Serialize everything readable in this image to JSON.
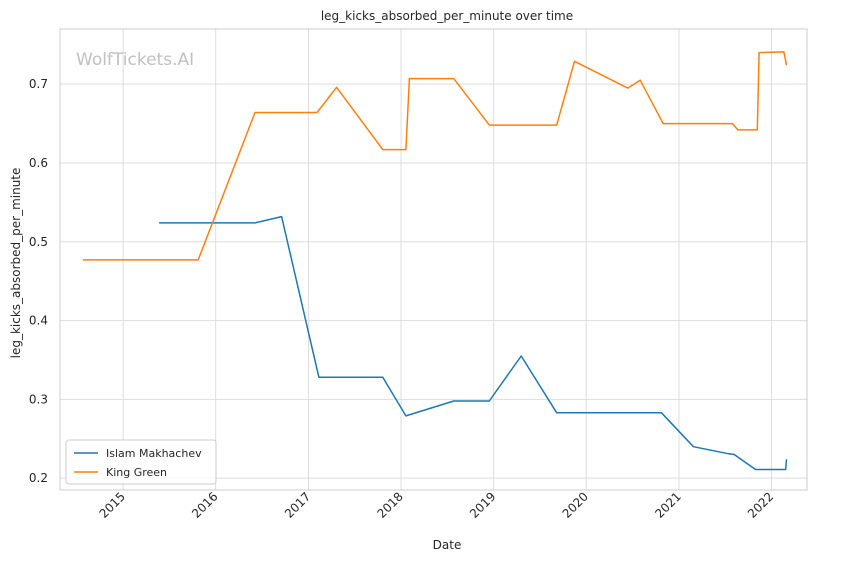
{
  "chart_data": {
    "type": "line",
    "title": "leg_kicks_absorbed_per_minute over time",
    "xlabel": "Date",
    "ylabel": "leg_kicks_absorbed_per_minute",
    "watermark": "WolfTickets.AI",
    "xlim": [
      "2014-04-27",
      "2022-05-21"
    ],
    "ylim": [
      0.185,
      0.77
    ],
    "x_ticks": [
      "2015",
      "2016",
      "2017",
      "2018",
      "2019",
      "2020",
      "2021",
      "2022"
    ],
    "y_ticks": [
      "0.2",
      "0.3",
      "0.4",
      "0.5",
      "0.6",
      "0.7"
    ],
    "grid": true,
    "legend_position": "lower-left",
    "series": [
      {
        "name": "Islam Makhachev",
        "color": "#1f77b4",
        "points": [
          [
            "2015-05-23",
            0.524
          ],
          [
            "2016-06-04",
            0.524
          ],
          [
            "2016-09-17",
            0.532
          ],
          [
            "2017-02-11",
            0.328
          ],
          [
            "2017-10-21",
            0.328
          ],
          [
            "2018-01-20",
            0.279
          ],
          [
            "2018-07-28",
            0.298
          ],
          [
            "2018-12-15",
            0.298
          ],
          [
            "2019-04-20",
            0.355
          ],
          [
            "2019-09-07",
            0.283
          ],
          [
            "2020-10-24",
            0.283
          ],
          [
            "2021-02-27",
            0.24
          ],
          [
            "2021-07-17",
            0.231
          ],
          [
            "2021-08-07",
            0.23
          ],
          [
            "2021-10-30",
            0.211
          ],
          [
            "2022-02-26",
            0.211
          ],
          [
            "2022-03-01",
            0.224
          ]
        ]
      },
      {
        "name": "King Green",
        "color": "#ff7f0e",
        "points": [
          [
            "2014-07-26",
            0.477
          ],
          [
            "2015-10-24",
            0.477
          ],
          [
            "2016-06-04",
            0.664
          ],
          [
            "2017-02-04",
            0.664
          ],
          [
            "2017-04-22",
            0.696
          ],
          [
            "2017-10-21",
            0.617
          ],
          [
            "2018-01-20",
            0.617
          ],
          [
            "2018-02-03",
            0.707
          ],
          [
            "2018-07-28",
            0.707
          ],
          [
            "2018-12-15",
            0.648
          ],
          [
            "2019-09-07",
            0.648
          ],
          [
            "2019-11-16",
            0.729
          ],
          [
            "2020-06-13",
            0.695
          ],
          [
            "2020-08-01",
            0.705
          ],
          [
            "2020-09-05",
            0.684
          ],
          [
            "2020-10-31",
            0.65
          ],
          [
            "2021-07-31",
            0.65
          ],
          [
            "2021-08-21",
            0.642
          ],
          [
            "2021-11-06",
            0.642
          ],
          [
            "2021-11-13",
            0.74
          ],
          [
            "2022-02-19",
            0.741
          ],
          [
            "2022-03-01",
            0.724
          ]
        ]
      }
    ]
  }
}
